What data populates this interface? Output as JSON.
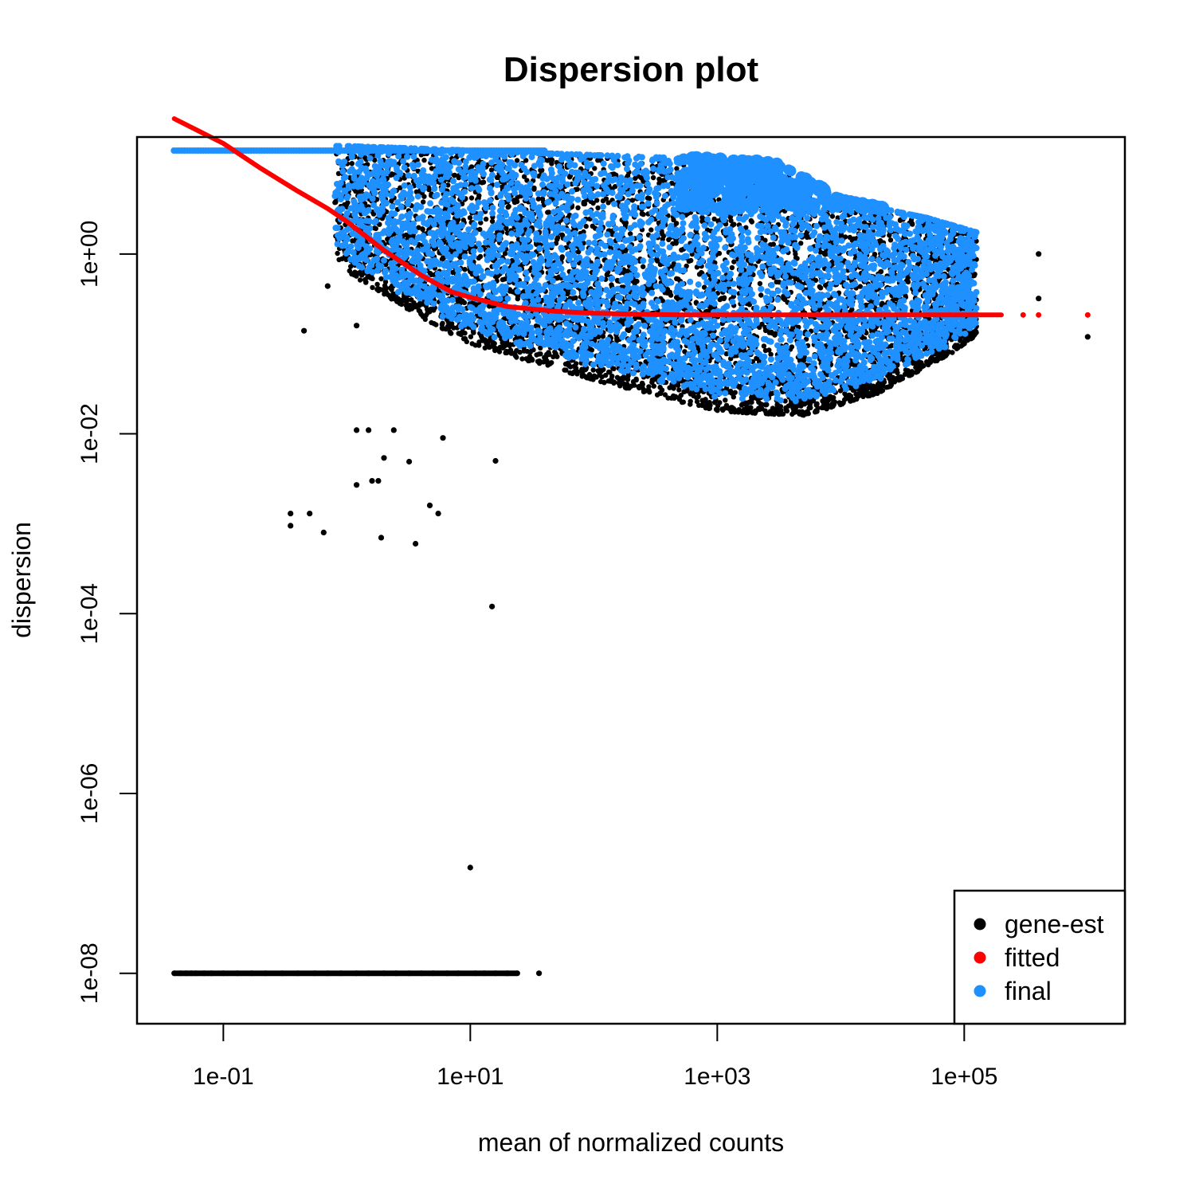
{
  "colors": {
    "gene_est": "#000000",
    "fitted": "#ff0000",
    "final": "#1e90ff",
    "frame": "#000000"
  },
  "chart_data": {
    "type": "scatter",
    "title": "Dispersion plot",
    "xlabel": "mean of normalized counts",
    "ylabel": "dispersion",
    "x_scale": "log10",
    "y_scale": "log10",
    "xlim": [
      0.02,
      2000000
    ],
    "ylim": [
      2.75e-09,
      20
    ],
    "x_ticks": [
      {
        "value": 0.1,
        "label": "1e-01"
      },
      {
        "value": 10,
        "label": "1e+01"
      },
      {
        "value": 1000,
        "label": "1e+03"
      },
      {
        "value": 100000,
        "label": "1e+05"
      }
    ],
    "y_ticks": [
      {
        "value": 1e-08,
        "label": "1e-08"
      },
      {
        "value": 1e-06,
        "label": "1e-06"
      },
      {
        "value": 0.0001,
        "label": "1e-04"
      },
      {
        "value": 0.01,
        "label": "1e-02"
      },
      {
        "value": 1,
        "label": "1e+00"
      }
    ],
    "legend": {
      "position": "bottom-right",
      "entries": [
        {
          "label": "gene-est",
          "color": "#000000"
        },
        {
          "label": "fitted",
          "color": "#ff0000"
        },
        {
          "label": "final",
          "color": "#1e90ff"
        }
      ]
    },
    "series": [
      {
        "name": "fitted",
        "kind": "curve",
        "points": [
          [
            0.04,
            32
          ],
          [
            0.1,
            17
          ],
          [
            0.2,
            9
          ],
          [
            0.4,
            5
          ],
          [
            0.7,
            3.2
          ],
          [
            1,
            2.3
          ],
          [
            2,
            1.1
          ],
          [
            4,
            0.58
          ],
          [
            7,
            0.38
          ],
          [
            10,
            0.33
          ],
          [
            20,
            0.26
          ],
          [
            50,
            0.23
          ],
          [
            100,
            0.22
          ],
          [
            200,
            0.215
          ],
          [
            500,
            0.21
          ],
          [
            1000,
            0.21
          ],
          [
            100000,
            0.21
          ],
          [
            200000,
            0.21
          ]
        ]
      },
      {
        "name": "gene-est",
        "kind": "outliers",
        "points": [
          [
            0.35,
            0.0013
          ],
          [
            0.35,
            0.00095
          ],
          [
            0.5,
            0.0013
          ],
          [
            0.65,
            0.0008
          ],
          [
            1.2,
            0.0027
          ],
          [
            1.6,
            0.003
          ],
          [
            1.8,
            0.003
          ],
          [
            1.2,
            0.011
          ],
          [
            1.5,
            0.011
          ],
          [
            2.0,
            0.0054
          ],
          [
            2.4,
            0.011
          ],
          [
            3.2,
            0.0049
          ],
          [
            4.7,
            0.0016
          ],
          [
            5.5,
            0.0013
          ],
          [
            3.6,
            0.0006
          ],
          [
            15,
            0.00012
          ],
          [
            10,
            1.5e-07
          ],
          [
            16,
            0.005
          ],
          [
            6,
            0.009
          ],
          [
            1.9,
            0.0007
          ],
          [
            0.45,
            0.14
          ],
          [
            1.2,
            0.16
          ],
          [
            0.7,
            0.44
          ],
          [
            400000,
            1.0
          ],
          [
            400000,
            0.32
          ],
          [
            1000000,
            0.12
          ]
        ]
      },
      {
        "name": "gene-est",
        "kind": "zero-dispersion",
        "points": [
          [
            0.04,
            1e-08
          ],
          [
            0.045,
            1e-08
          ],
          [
            0.05,
            1e-08
          ],
          [
            0.055,
            1e-08
          ],
          [
            0.06,
            1e-08
          ],
          [
            0.07,
            1e-08
          ],
          [
            0.08,
            1e-08
          ],
          [
            0.1,
            1e-08
          ],
          [
            0.13,
            1e-08
          ],
          [
            0.17,
            1e-08
          ],
          [
            0.22,
            1e-08
          ],
          [
            0.3,
            1e-08
          ],
          [
            0.4,
            1e-08
          ],
          [
            0.55,
            1e-08
          ],
          [
            0.7,
            1e-08
          ],
          [
            0.9,
            1e-08
          ],
          [
            1.2,
            1e-08
          ],
          [
            1.5,
            1e-08
          ],
          [
            2,
            1e-08
          ],
          [
            2.5,
            1e-08
          ],
          [
            3.2,
            1e-08
          ],
          [
            4,
            1e-08
          ],
          [
            5,
            1e-08
          ],
          [
            6.5,
            1e-08
          ],
          [
            8,
            1e-08
          ],
          [
            11,
            1e-08
          ],
          [
            13,
            1e-08
          ],
          [
            16,
            1e-08
          ],
          [
            20,
            1e-08
          ],
          [
            24,
            1e-08
          ],
          [
            36,
            1e-08
          ]
        ]
      }
    ]
  }
}
